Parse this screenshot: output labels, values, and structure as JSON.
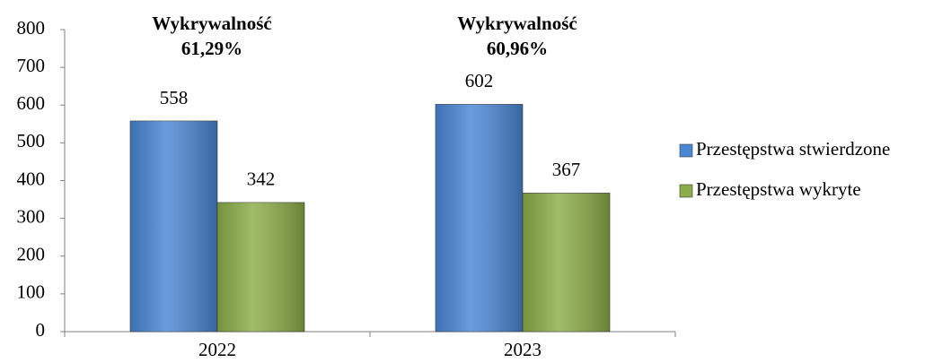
{
  "chart_data": {
    "type": "bar",
    "categories": [
      "2022",
      "2023"
    ],
    "series": [
      {
        "name": "Przestępstwa stwierdzone",
        "color": "#4a86d4",
        "values": [
          558,
          602
        ]
      },
      {
        "name": "Przestępstwa wykryte",
        "color": "#8cad48",
        "values": [
          342,
          367
        ]
      }
    ],
    "annotations": [
      {
        "label": "Wykrywalność",
        "value": "61,29%"
      },
      {
        "label": "Wykrywalność",
        "value": "60,96%"
      }
    ],
    "ylim": [
      0,
      800
    ],
    "yticks": [
      0,
      100,
      200,
      300,
      400,
      500,
      600,
      700,
      800
    ],
    "grid": false,
    "legend": "right"
  }
}
